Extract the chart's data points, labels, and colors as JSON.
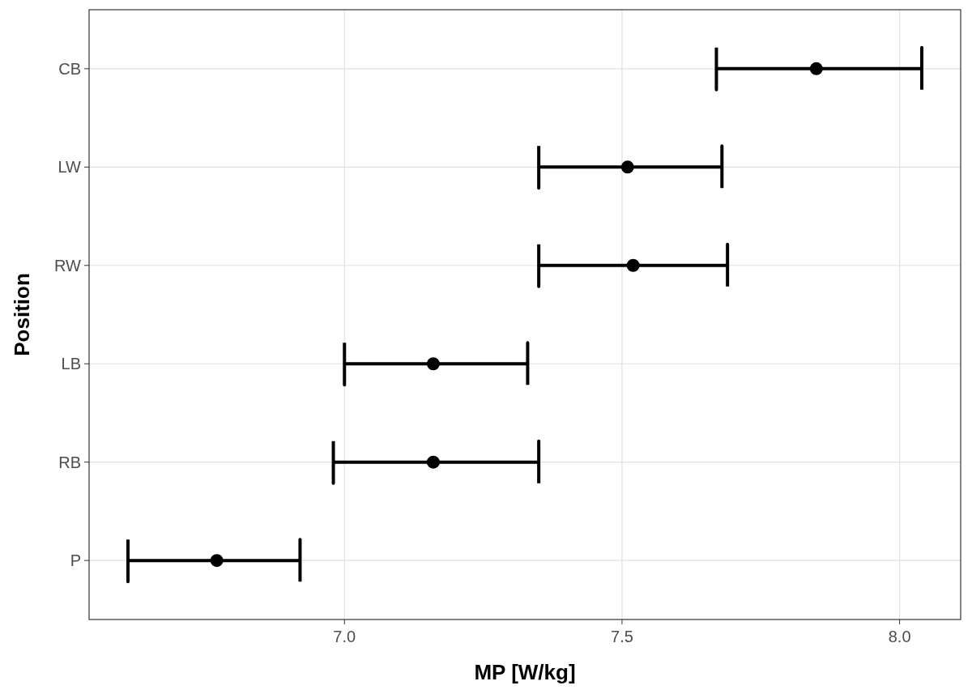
{
  "chart_data": {
    "type": "scatter",
    "orientation": "horizontal",
    "xlabel": "MP [W/kg]",
    "ylabel": "Position",
    "categories": [
      "CB",
      "LW",
      "RW",
      "LB",
      "RB",
      "P"
    ],
    "values": [
      7.85,
      7.51,
      7.52,
      7.16,
      7.16,
      6.77
    ],
    "errors": [
      [
        7.67,
        8.04
      ],
      [
        7.35,
        7.68
      ],
      [
        7.35,
        7.69
      ],
      [
        7.0,
        7.33
      ],
      [
        6.98,
        7.35
      ],
      [
        6.61,
        6.92
      ]
    ],
    "color": "#000000",
    "marker": "circle",
    "xlim": [
      6.54,
      8.11
    ],
    "xticks": [
      {
        "value": 7.0,
        "label": "7.0"
      },
      {
        "value": 7.5,
        "label": "7.5"
      },
      {
        "value": 8.0,
        "label": "8.0"
      }
    ],
    "grid": true
  }
}
